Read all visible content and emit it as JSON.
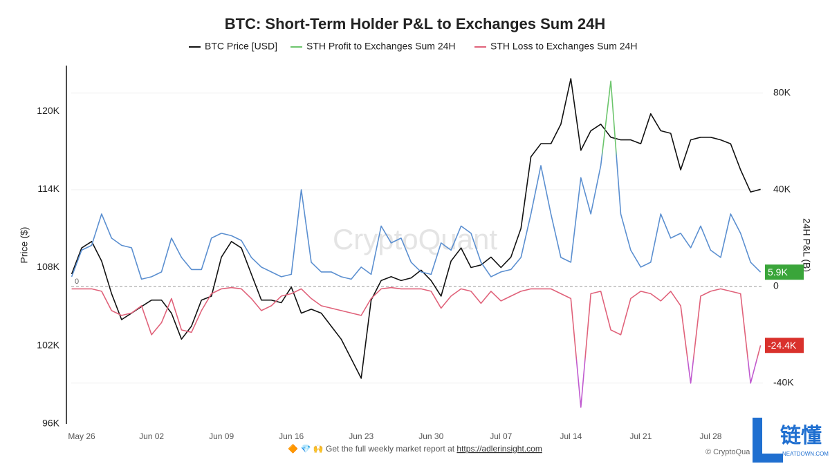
{
  "chart_data": {
    "type": "line",
    "title": "BTC: Short-Term Holder P&L to Exchanges Sum 24H",
    "watermark": "CryptoQuant",
    "y_label": "Price ($)",
    "y2_label": "24H P&L (B)",
    "categories": [
      null,
      "May 26",
      null,
      null,
      null,
      null,
      null,
      null,
      "Jun 02",
      null,
      null,
      null,
      null,
      null,
      null,
      "Jun 09",
      null,
      null,
      null,
      null,
      null,
      null,
      "Jun 16",
      null,
      null,
      null,
      null,
      null,
      null,
      "Jun 23",
      null,
      null,
      null,
      null,
      null,
      null,
      "Jun 30",
      null,
      null,
      null,
      null,
      null,
      null,
      "Jul 07",
      null,
      null,
      null,
      null,
      null,
      null,
      "Jul 14",
      null,
      null,
      null,
      null,
      null,
      null,
      "Jul 21",
      null,
      null,
      null,
      null,
      null,
      null,
      "Jul 28",
      null,
      null,
      null,
      null,
      null
    ],
    "ylim": [
      96000,
      123500
    ],
    "yticks": [
      {
        "value": 96000,
        "label": "96K"
      },
      {
        "value": 102000,
        "label": "102K"
      },
      {
        "value": 108000,
        "label": "108K"
      },
      {
        "value": 114000,
        "label": "114K"
      },
      {
        "value": 120000,
        "label": "120K"
      }
    ],
    "y2lim": [
      -56900,
      91400
    ],
    "y2ticks": [
      {
        "value": -40000,
        "label": "-40K"
      },
      0,
      {
        "value": 40000,
        "label": "40K"
      },
      {
        "value": 80000,
        "label": "80K"
      }
    ],
    "grid": true,
    "series": [
      {
        "name": "BTC Price [USD]",
        "color": "#111111",
        "axis": "y",
        "values": [
          107500,
          109500,
          110000,
          108500,
          106000,
          104000,
          104500,
          105000,
          105500,
          105500,
          104500,
          102500,
          103500,
          105500,
          105800,
          108800,
          110000,
          109500,
          107500,
          105500,
          105500,
          105300,
          106500,
          104500,
          104800,
          104500,
          103500,
          102500,
          101000,
          99500,
          105500,
          107000,
          107300,
          107000,
          107200,
          107800,
          107000,
          105800,
          108500,
          109500,
          108000,
          108200,
          108800,
          108000,
          108800,
          111000,
          116500,
          117500,
          117500,
          119000,
          122500,
          117000,
          118500,
          119000,
          118000,
          117800,
          117800,
          117500,
          119800,
          118500,
          118300,
          115500,
          117800,
          118000,
          118000,
          117800,
          117500,
          115500,
          113800,
          114000
        ]
      },
      {
        "name": "STH Profit to Exchanges Sum 24H",
        "color": "#6cc56c",
        "axis": "y2",
        "stroke_colors": {
          "below": "#5b8fd0",
          "above": "#6cc56c",
          "split": 55000
        },
        "end_label": "5.9K",
        "values": [
          4000,
          15000,
          17000,
          30000,
          20000,
          17000,
          16000,
          3000,
          4000,
          6000,
          20000,
          12000,
          7000,
          7000,
          20000,
          22000,
          21000,
          19000,
          12000,
          8000,
          6000,
          4000,
          5000,
          40000,
          10000,
          6000,
          6000,
          4000,
          3000,
          8000,
          5000,
          25000,
          18000,
          20000,
          10000,
          6000,
          5000,
          18000,
          15000,
          25000,
          22000,
          10000,
          4000,
          6000,
          7000,
          12000,
          30000,
          50000,
          30000,
          12000,
          10000,
          45000,
          30000,
          50000,
          85000,
          30000,
          15000,
          8000,
          10000,
          30000,
          20000,
          22000,
          16000,
          25000,
          15000,
          12000,
          30000,
          22000,
          10000,
          5900
        ]
      },
      {
        "name": "STH Loss to Exchanges Sum 24H",
        "color": "#e0627a",
        "axis": "y2",
        "stroke_colors": {
          "below": "#c05ad0",
          "above": "#e0627a",
          "split": -30000
        },
        "end_label": "-24.4K",
        "values": [
          -1000,
          -1000,
          -1000,
          -2000,
          -10000,
          -12000,
          -11000,
          -8000,
          -20000,
          -15000,
          -5000,
          -18000,
          -19000,
          -10000,
          -3000,
          -1000,
          -500,
          -1000,
          -5000,
          -10000,
          -8000,
          -4000,
          -3000,
          -1000,
          -5000,
          -8000,
          -9000,
          -10000,
          -11000,
          -12000,
          -5000,
          -1000,
          -500,
          -1000,
          -1000,
          -1000,
          -2000,
          -9000,
          -4000,
          -1000,
          -2000,
          -7000,
          -2000,
          -6000,
          -4000,
          -2000,
          -1000,
          -1000,
          -1000,
          -3000,
          -5000,
          -50000,
          -3000,
          -2000,
          -18000,
          -20000,
          -5000,
          -2000,
          -3000,
          -6000,
          -2000,
          -8000,
          -40000,
          -4000,
          -2000,
          -1000,
          -2000,
          -3000,
          -40000,
          -24400
        ]
      }
    ]
  },
  "footer": {
    "text": "🔶 💎 🙌  Get the full weekly market report at",
    "link": "https://adlerinsight.com"
  },
  "credit": "© CryptoQua",
  "logo": {
    "name": "链懂",
    "site": "NEATDOWN.COM"
  }
}
